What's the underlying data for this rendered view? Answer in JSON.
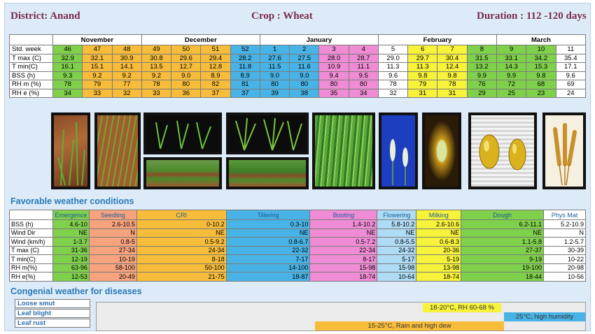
{
  "header": {
    "district": "District: Anand",
    "crop": "Crop : Wheat",
    "duration": "Duration : 112 -120 days"
  },
  "weather_table": {
    "months": [
      "November",
      "December",
      "January",
      "February",
      "March"
    ],
    "std_week_label": "Std. week",
    "std_weeks": [
      "46",
      "47",
      "48",
      "49",
      "50",
      "51",
      "52",
      "1",
      "2",
      "3",
      "4",
      "5",
      "6",
      "7",
      "8",
      "9",
      "10",
      "11"
    ],
    "rows": [
      {
        "label": "T max (C)",
        "values": [
          "32.9",
          "32.1",
          "30.9",
          "30.8",
          "29.6",
          "29.4",
          "28.2",
          "27.6",
          "27.5",
          "28.0",
          "28.7",
          "29.0",
          "29.7",
          "30.4",
          "31.5",
          "33.1",
          "34.2",
          "35.4"
        ]
      },
      {
        "label": "T min(C)",
        "values": [
          "16.1",
          "15.1",
          "14.1",
          "13.5",
          "12.7",
          "12.8",
          "11.8",
          "11.5",
          "11.6",
          "10.9",
          "11.1",
          "11.3",
          "11.3",
          "12.4",
          "13.2",
          "14.3",
          "15.3",
          "17.1"
        ]
      },
      {
        "label": "BSS (h)",
        "values": [
          "9.3",
          "9.2",
          "9.2",
          "9.2",
          "9.0",
          "8.9",
          "8.9",
          "9.0",
          "9.0",
          "9.4",
          "9.5",
          "9.6",
          "9.8",
          "9.8",
          "9.9",
          "9.9",
          "9.8",
          "9.6"
        ]
      },
      {
        "label": "RH m (%)",
        "values": [
          "78",
          "79",
          "77",
          "78",
          "80",
          "82",
          "81",
          "80",
          "80",
          "80",
          "80",
          "78",
          "79",
          "78",
          "76",
          "72",
          "68",
          "69"
        ]
      },
      {
        "label": "RH e (%)",
        "values": [
          "34",
          "33",
          "32",
          "33",
          "36",
          "37",
          "37",
          "39",
          "38",
          "35",
          "34",
          "32",
          "31",
          "31",
          "29",
          "25",
          "23",
          "24"
        ]
      }
    ]
  },
  "favorable": {
    "title": "Favorable weather conditions",
    "stages": [
      "Emergence",
      "Seedling",
      "CRI",
      "Tillering",
      "Booting",
      "Flowering",
      "Milking",
      "Dough",
      "Phys Mat"
    ],
    "rows": [
      {
        "label": "BSS (h)",
        "values": [
          "4.6-10",
          "2.6-10.5",
          "0-10.2",
          "0.3-10",
          "1.4-10.2",
          "5.8-10.2",
          "2.6-10.6",
          "6.2-11.1",
          "5.2-10.9"
        ]
      },
      {
        "label": "Wind Dir",
        "values": [
          "NE",
          "N",
          "NE",
          "NE",
          "NE",
          "NE",
          "NE",
          "NE",
          "N"
        ]
      },
      {
        "label": "Wind (km/h)",
        "values": [
          "1-3.7",
          "0.8-5",
          "0.5-9.2",
          "0.8-6.7",
          "0.5-7.2",
          "0.8-5.5",
          "0.6-8.3",
          "1.1-5.8",
          "1.2-5.7"
        ]
      },
      {
        "label": "T max (C)",
        "values": [
          "31-36",
          "27-34",
          "24-34",
          "22-32",
          "22-34",
          "24-32",
          "20-36",
          "27-37",
          "30-39"
        ]
      },
      {
        "label": "T min(C)",
        "values": [
          "12-19",
          "10-19",
          "8-18",
          "7-17",
          "8-17",
          "5-17",
          "5-19",
          "9-19",
          "10-22"
        ]
      },
      {
        "label": "RH m(%)",
        "values": [
          "63-96",
          "58-100",
          "50-100",
          "14-100",
          "15-98",
          "15-98",
          "13-98",
          "19-100",
          "20-98"
        ]
      },
      {
        "label": "RH e(%)",
        "values": [
          "12-53",
          "20-49",
          "21-75",
          "18-87",
          "18-74",
          "10-64",
          "18-74",
          "18-44",
          "10-56"
        ]
      }
    ]
  },
  "diseases": {
    "title": "Congenial weather for diseases",
    "items": [
      {
        "name": "Loose smut",
        "condition": "18-20°C, RH 60-68 %",
        "color": "#f7f23a"
      },
      {
        "name": "Leaf blight",
        "condition": "25°C, high humidity",
        "color": "#47b3e6"
      },
      {
        "name": "Leaf rust",
        "condition": "15-25°C, Rain and high dew",
        "color": "#f7bd3a"
      }
    ]
  },
  "colors": {
    "green": "#7fd04a",
    "orange": "#f7bd3a",
    "blue": "#47b3e6",
    "pink": "#f08cd6",
    "yellow": "#f7f23a",
    "salmon": "#f7a37d"
  }
}
